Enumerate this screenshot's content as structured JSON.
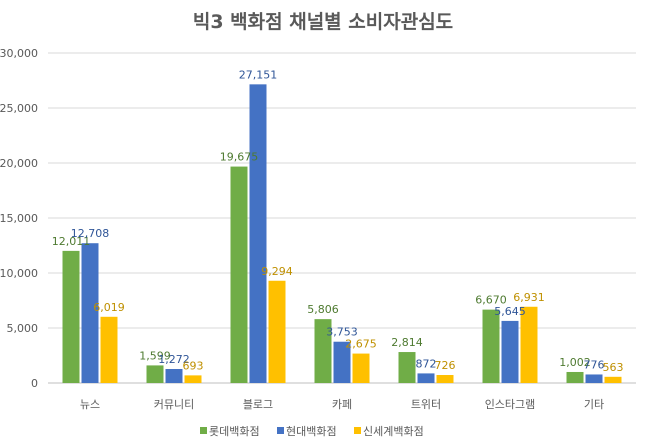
{
  "chart_data": {
    "type": "bar",
    "title": "빅3 백화점 채널별 소비자관심도",
    "categories": [
      "뉴스",
      "커뮤니티",
      "블로그",
      "카페",
      "트위터",
      "인스타그램",
      "기타"
    ],
    "series": [
      {
        "name": "롯데백화점",
        "color": "#70AD47",
        "label_color": "#4E7A30",
        "values": [
          12011,
          1599,
          19675,
          5806,
          2814,
          6670,
          1002
        ]
      },
      {
        "name": "현대백화점",
        "color": "#4472C4",
        "label_color": "#2F5597",
        "values": [
          12708,
          1272,
          27151,
          3753,
          872,
          5645,
          776
        ]
      },
      {
        "name": "신세계백화점",
        "color": "#FFC000",
        "label_color": "#BF9000",
        "values": [
          6019,
          693,
          9294,
          2675,
          726,
          6931,
          563
        ]
      }
    ],
    "ylim": [
      0,
      30000
    ],
    "yticks": [
      "0",
      "5,000",
      "10,000",
      "15,000",
      "20,000",
      "25,000",
      "30,000"
    ],
    "ytick_values": [
      0,
      5000,
      10000,
      15000,
      20000,
      25000,
      30000
    ],
    "grid": true,
    "legend": "bottom"
  }
}
